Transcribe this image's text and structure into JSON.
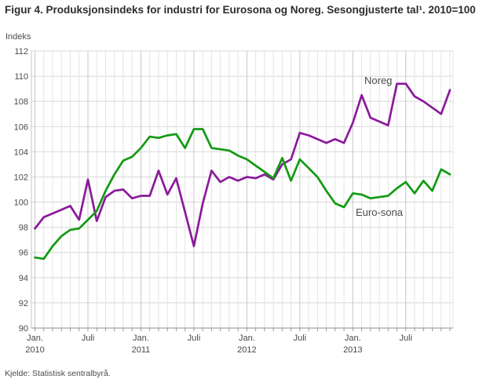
{
  "header": {
    "title": "Figur 4. Produksjonsindeks for industri for Eurosona og Noreg. Sesongjusterte tal¹. 2010=100"
  },
  "footer": {
    "source": "Kjelde: Statistisk sentralbyrå."
  },
  "chart_data": {
    "type": "line",
    "title": "Figur 4. Produksjonsindeks for industri for Eurosona og Noreg. Sesongjusterte tal¹. 2010=100",
    "ylabel": "Indeks",
    "ylim": [
      90,
      112
    ],
    "ytick_step": 2,
    "grid": true,
    "legend_position": "inline-labels",
    "x_start": "2010-01",
    "x_freq": "monthly",
    "categories": [
      "2010-01",
      "2010-02",
      "2010-03",
      "2010-04",
      "2010-05",
      "2010-06",
      "2010-07",
      "2010-08",
      "2010-09",
      "2010-10",
      "2010-11",
      "2010-12",
      "2011-01",
      "2011-02",
      "2011-03",
      "2011-04",
      "2011-05",
      "2011-06",
      "2011-07",
      "2011-08",
      "2011-09",
      "2011-10",
      "2011-11",
      "2011-12",
      "2012-01",
      "2012-02",
      "2012-03",
      "2012-04",
      "2012-05",
      "2012-06",
      "2012-07",
      "2012-08",
      "2012-09",
      "2012-10",
      "2012-11",
      "2012-12",
      "2013-01",
      "2013-02",
      "2013-03",
      "2013-04",
      "2013-05",
      "2013-06",
      "2013-07",
      "2013-08",
      "2013-09",
      "2013-10",
      "2013-11",
      "2013-12"
    ],
    "xticks": [
      {
        "month_index": 0,
        "label": "Jan.",
        "year": "2010"
      },
      {
        "month_index": 6,
        "label": "Juli",
        "year": ""
      },
      {
        "month_index": 12,
        "label": "Jan.",
        "year": "2011"
      },
      {
        "month_index": 18,
        "label": "Juli",
        "year": ""
      },
      {
        "month_index": 24,
        "label": "Jan.",
        "year": "2012"
      },
      {
        "month_index": 30,
        "label": "Juli",
        "year": ""
      },
      {
        "month_index": 36,
        "label": "Jan.",
        "year": "2013"
      },
      {
        "month_index": 42,
        "label": "Juli",
        "year": ""
      }
    ],
    "series": [
      {
        "name": "Noreg",
        "color": "#8b1a9b",
        "values": [
          97.9,
          98.8,
          99.1,
          99.4,
          99.7,
          98.6,
          101.8,
          98.5,
          100.4,
          100.9,
          101.0,
          100.3,
          100.5,
          100.5,
          102.5,
          100.6,
          101.9,
          99.2,
          96.5,
          99.9,
          102.5,
          101.6,
          102.0,
          101.7,
          102.0,
          101.9,
          102.2,
          101.8,
          103.0,
          103.4,
          105.5,
          105.3,
          105.0,
          104.7,
          105.0,
          104.7,
          106.3,
          108.5,
          106.7,
          106.4,
          106.1,
          109.4,
          109.4,
          108.4,
          108.0,
          107.5,
          107.0,
          108.9
        ]
      },
      {
        "name": "Euro-sona",
        "color": "#129a12",
        "values": [
          95.6,
          95.5,
          96.5,
          97.3,
          97.8,
          97.9,
          98.6,
          99.3,
          100.9,
          102.2,
          103.3,
          103.6,
          104.3,
          105.2,
          105.1,
          105.3,
          105.4,
          104.3,
          105.8,
          105.8,
          104.3,
          104.2,
          104.1,
          103.7,
          103.4,
          102.9,
          102.4,
          101.9,
          103.5,
          101.7,
          103.4,
          102.7,
          102.0,
          100.9,
          99.9,
          99.6,
          100.7,
          100.6,
          100.3,
          100.4,
          100.5,
          101.1,
          101.6,
          100.7,
          101.7,
          100.9,
          102.6,
          102.2
        ]
      }
    ],
    "series_label_annotations": [
      {
        "text": "Noreg",
        "series": "Noreg"
      },
      {
        "text": "Euro-sona",
        "series": "Euro-sona"
      }
    ]
  }
}
